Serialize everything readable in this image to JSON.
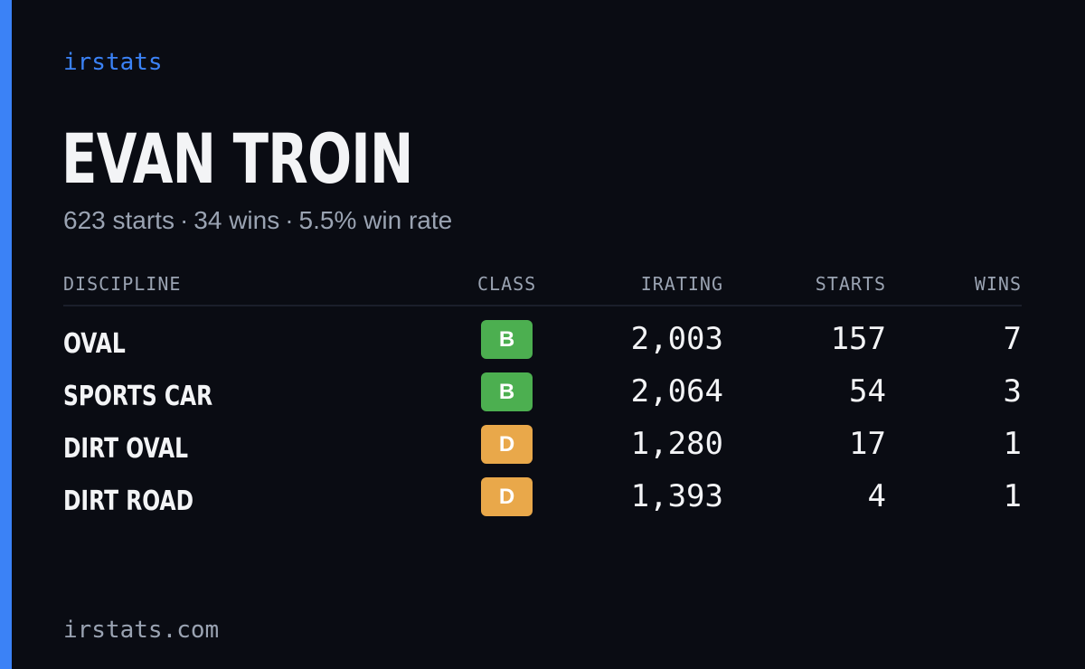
{
  "brand": "irstats",
  "player": {
    "name": "EVAN TROIN"
  },
  "summary": {
    "starts": "623 starts",
    "wins": "34 wins",
    "win_rate": "5.5% win rate",
    "separator": "·"
  },
  "table": {
    "headers": {
      "discipline": "DISCIPLINE",
      "class": "CLASS",
      "irating": "IRATING",
      "starts": "STARTS",
      "wins": "WINS"
    },
    "rows": [
      {
        "discipline": "OVAL",
        "class": "B",
        "class_color": "#4caf50",
        "irating": "2,003",
        "starts": "157",
        "wins": "7"
      },
      {
        "discipline": "SPORTS CAR",
        "class": "B",
        "class_color": "#4caf50",
        "irating": "2,064",
        "starts": "54",
        "wins": "3"
      },
      {
        "discipline": "DIRT OVAL",
        "class": "D",
        "class_color": "#e9a84a",
        "irating": "1,280",
        "starts": "17",
        "wins": "1"
      },
      {
        "discipline": "DIRT ROAD",
        "class": "D",
        "class_color": "#e9a84a",
        "irating": "1,393",
        "starts": "4",
        "wins": "1"
      }
    ]
  },
  "footer": {
    "url": "irstats.com"
  },
  "colors": {
    "accent": "#3b82f6",
    "background": "#0a0c13",
    "muted_text": "#9aa3b2",
    "primary_text": "#f3f4f6"
  }
}
